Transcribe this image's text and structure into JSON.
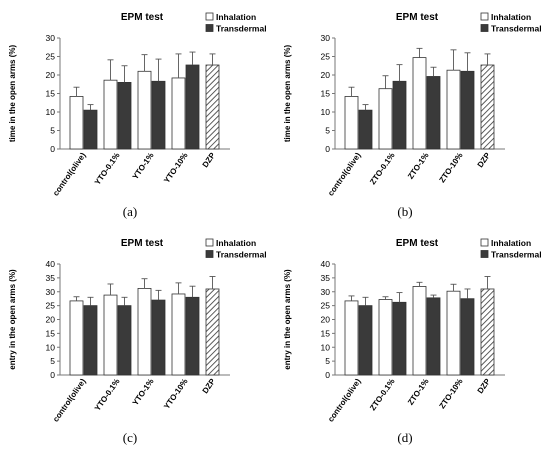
{
  "chart_data": [
    {
      "type": "bar",
      "panel": "(a)",
      "title": "EPM test",
      "ylabel": "time in the open arms (%)",
      "ylim": [
        0,
        30
      ],
      "yticks": [
        0,
        5,
        10,
        15,
        20,
        25,
        30
      ],
      "categories": [
        "control(olive)",
        "YTO-0.1%",
        "YTO-1%",
        "YTO-10%",
        "DZP"
      ],
      "series": [
        {
          "name": "Inhalation",
          "values": [
            14.2,
            18.6,
            21.0,
            19.2,
            null
          ],
          "errors": [
            2.5,
            5.5,
            4.5,
            6.5,
            null
          ]
        },
        {
          "name": "Transdermal",
          "values": [
            10.5,
            18.0,
            18.3,
            22.7,
            null
          ],
          "errors": [
            1.5,
            4.5,
            6.0,
            3.5,
            null
          ]
        },
        {
          "name": "DZP",
          "values": [
            null,
            null,
            null,
            null,
            22.7
          ],
          "errors": [
            null,
            null,
            null,
            null,
            3.0
          ]
        }
      ]
    },
    {
      "type": "bar",
      "panel": "(b)",
      "title": "EPM test",
      "ylabel": "time in the open arms (%)",
      "ylim": [
        0,
        30
      ],
      "yticks": [
        0,
        5,
        10,
        15,
        20,
        25,
        30
      ],
      "categories": [
        "control(olive)",
        "ZTO-0.1%",
        "ZTO-1%",
        "ZTO-10%",
        "DZP"
      ],
      "series": [
        {
          "name": "Inhalation",
          "values": [
            14.2,
            16.3,
            24.7,
            21.3,
            null
          ],
          "errors": [
            2.5,
            3.5,
            2.5,
            5.5,
            null
          ]
        },
        {
          "name": "Transdermal",
          "values": [
            10.5,
            18.3,
            19.6,
            21.0,
            null
          ],
          "errors": [
            1.5,
            4.5,
            2.5,
            5.0,
            null
          ]
        },
        {
          "name": "DZP",
          "values": [
            null,
            null,
            null,
            null,
            22.7
          ],
          "errors": [
            null,
            null,
            null,
            null,
            3.0
          ]
        }
      ]
    },
    {
      "type": "bar",
      "panel": "(c)",
      "title": "EPM test",
      "ylabel": "entry in the open arms (%)",
      "ylim": [
        0,
        40
      ],
      "yticks": [
        0,
        5,
        10,
        15,
        20,
        25,
        30,
        35,
        40
      ],
      "categories": [
        "control(olive)",
        "YTO-0.1%",
        "YTO-1%",
        "YTO-10%",
        "DZP"
      ],
      "series": [
        {
          "name": "Inhalation",
          "values": [
            26.7,
            28.8,
            31.2,
            29.2,
            null
          ],
          "errors": [
            1.5,
            4.0,
            3.5,
            4.0,
            null
          ]
        },
        {
          "name": "Transdermal",
          "values": [
            25.0,
            25.0,
            27.0,
            28.0,
            null
          ],
          "errors": [
            3.0,
            3.0,
            3.5,
            4.0,
            null
          ]
        },
        {
          "name": "DZP",
          "values": [
            null,
            null,
            null,
            null,
            31.0
          ],
          "errors": [
            null,
            null,
            null,
            null,
            4.5
          ]
        }
      ]
    },
    {
      "type": "bar",
      "panel": "(d)",
      "title": "EPM test",
      "ylabel": "entry in the open arms (%)",
      "ylim": [
        0,
        40
      ],
      "yticks": [
        0,
        5,
        10,
        15,
        20,
        25,
        30,
        35,
        40
      ],
      "categories": [
        "control(olive)",
        "ZTO-0.1%",
        "ZTO-1%",
        "ZTO-10%",
        "DZP"
      ],
      "series": [
        {
          "name": "Inhalation",
          "values": [
            26.7,
            27.2,
            31.9,
            30.2,
            null
          ],
          "errors": [
            1.8,
            1.0,
            1.5,
            2.5,
            null
          ]
        },
        {
          "name": "Transdermal",
          "values": [
            25.0,
            26.2,
            27.8,
            27.5,
            null
          ],
          "errors": [
            3.0,
            3.5,
            1.0,
            3.5,
            null
          ]
        },
        {
          "name": "DZP",
          "values": [
            null,
            null,
            null,
            null,
            31.0
          ],
          "errors": [
            null,
            null,
            null,
            null,
            4.5
          ]
        }
      ]
    }
  ],
  "legend": {
    "inhalation": "Inhalation",
    "transdermal": "Transdermal"
  },
  "colors": {
    "inhalation": "#ffffff",
    "transdermal": "#3a3a3a",
    "axis": "#777777",
    "dzp_hatch": "#333333"
  }
}
